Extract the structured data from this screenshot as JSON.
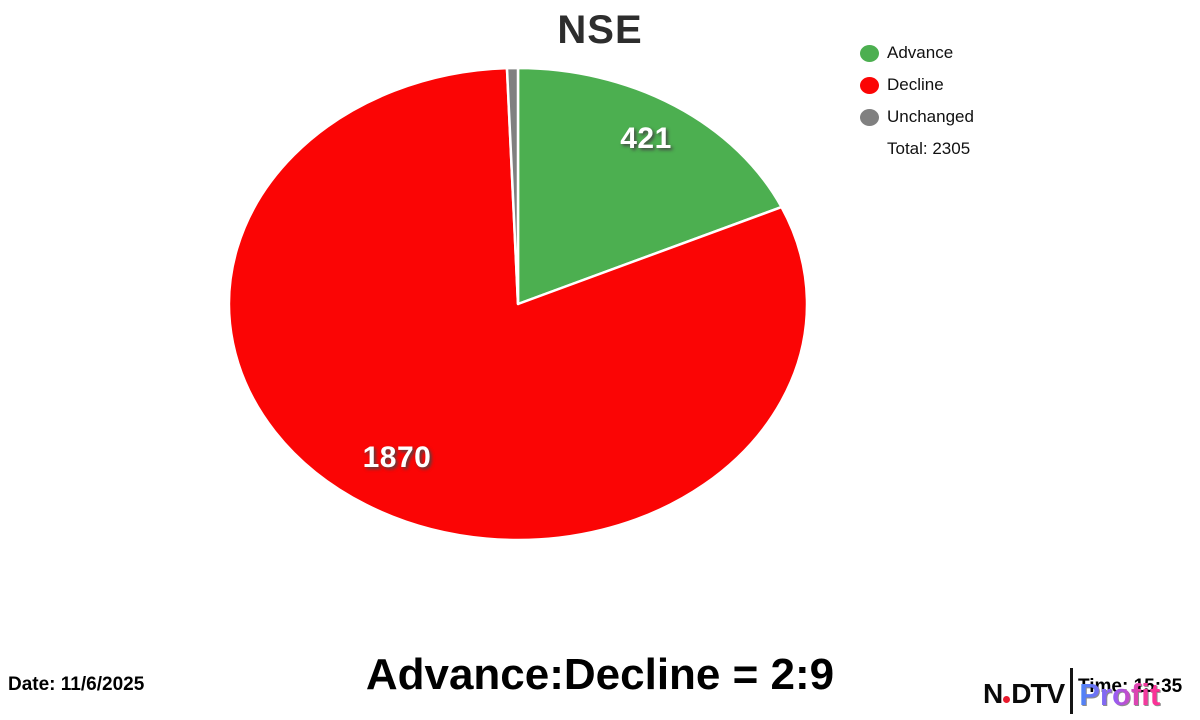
{
  "header": {
    "title": "NSE"
  },
  "chart_data": {
    "type": "pie",
    "title": "NSE",
    "categories": [
      "Advance",
      "Decline",
      "Unchanged"
    ],
    "values": [
      421,
      1870,
      14
    ],
    "colors": [
      "#4caf50",
      "#fb0505",
      "#808080"
    ],
    "total_shown": 2305,
    "start_angle_deg": -90,
    "direction": "clockwise",
    "legend_position": "top-right",
    "slice_labels_visible": [
      "421",
      "1870"
    ]
  },
  "legend": {
    "items": [
      {
        "label": "Advance",
        "color": "#4caf50"
      },
      {
        "label": "Decline",
        "color": "#fb0505"
      },
      {
        "label": "Unchanged",
        "color": "#808080"
      }
    ],
    "total_label": "Total: 2305"
  },
  "footer": {
    "date_label": "Date: 11/6/2025",
    "ratio_title": "Advance:Decline = 2:9",
    "time_label": "Time: 15:35",
    "logo": {
      "ndtv_n": "N",
      "ndtv_dtv": "DTV",
      "profit": "Profit",
      "dot_color": "#e8192c"
    }
  }
}
